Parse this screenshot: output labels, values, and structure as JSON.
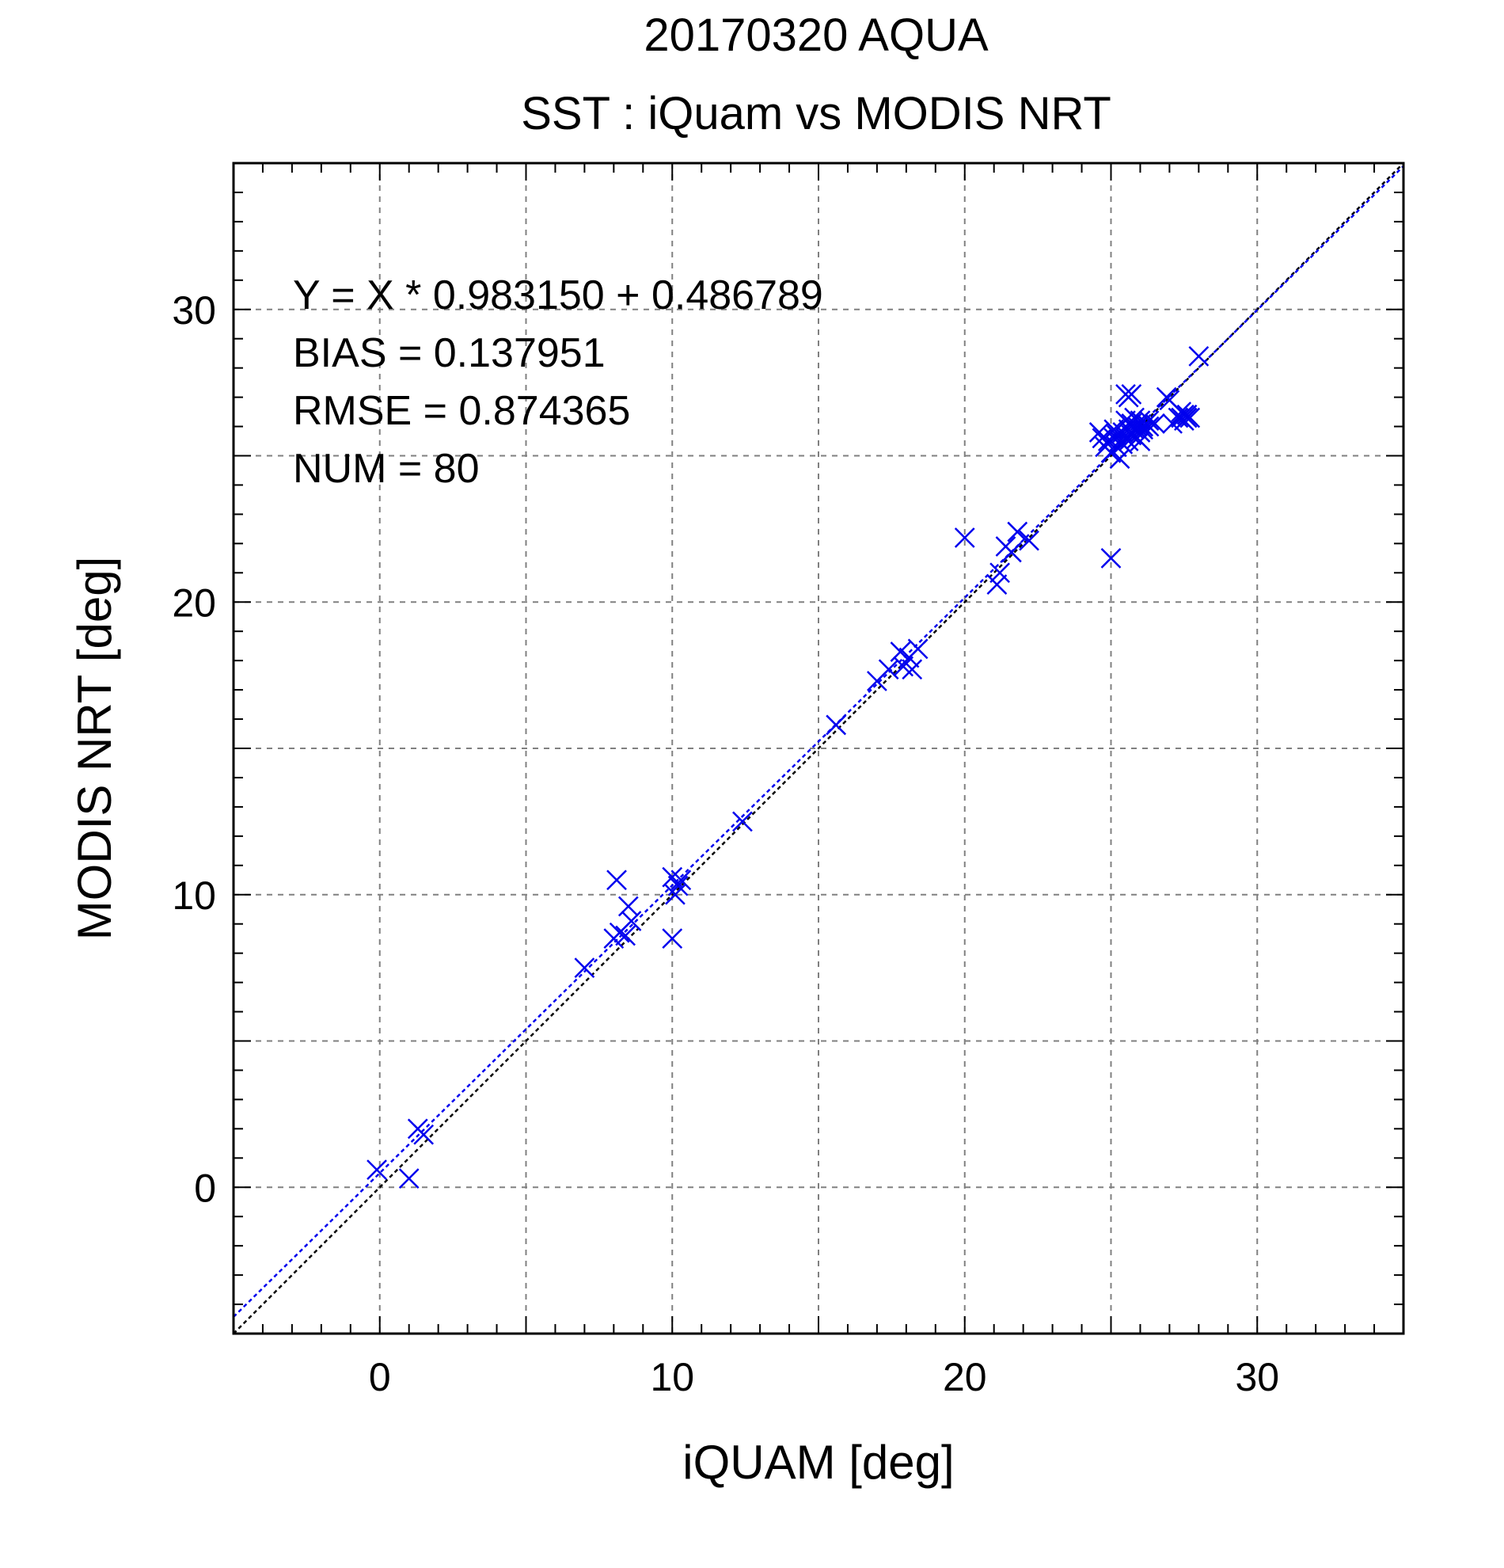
{
  "chart_data": {
    "type": "scatter",
    "title": "20170320 AQUA",
    "subtitle": "SST : iQuam vs MODIS NRT",
    "xlabel": "iQUAM [deg]",
    "ylabel": "MODIS NRT [deg]",
    "xlim": [
      -5,
      35
    ],
    "ylim": [
      -5,
      35
    ],
    "xticks": [
      0,
      10,
      20,
      30
    ],
    "yticks": [
      0,
      10,
      20,
      30
    ],
    "grid": true,
    "grid_step": 5,
    "minor_tick_step": 1,
    "marker": "x",
    "marker_color": "#0000ee",
    "stats": [
      "Y = X * 0.983150 + 0.486789",
      "BIAS = 0.137951",
      "RMSE = 0.874365",
      "NUM = 80"
    ],
    "lines": [
      {
        "kind": "one-to-one",
        "slope": 1,
        "intercept": 0,
        "color": "#000000",
        "style": "dotted"
      },
      {
        "kind": "regression",
        "slope": 0.98315,
        "intercept": 0.486789,
        "color": "#0000ee",
        "style": "dotted"
      }
    ],
    "series": [
      {
        "points": [
          [
            -0.1,
            0.6
          ],
          [
            1.0,
            0.3
          ],
          [
            1.3,
            2.0
          ],
          [
            1.5,
            1.8
          ],
          [
            7.0,
            7.5
          ],
          [
            8.0,
            8.5
          ],
          [
            8.1,
            10.5
          ],
          [
            8.2,
            8.7
          ],
          [
            8.4,
            8.6
          ],
          [
            8.5,
            9.6
          ],
          [
            8.6,
            9.1
          ],
          [
            10.0,
            8.5
          ],
          [
            10.0,
            10.6
          ],
          [
            10.1,
            10.0
          ],
          [
            10.2,
            10.3
          ],
          [
            10.3,
            10.5
          ],
          [
            12.4,
            12.5
          ],
          [
            15.6,
            15.8
          ],
          [
            17.0,
            17.3
          ],
          [
            17.4,
            17.7
          ],
          [
            17.8,
            18.3
          ],
          [
            17.9,
            17.8
          ],
          [
            18.1,
            18.1
          ],
          [
            18.2,
            17.7
          ],
          [
            18.4,
            18.4
          ],
          [
            20.0,
            22.2
          ],
          [
            21.1,
            20.6
          ],
          [
            21.2,
            21.0
          ],
          [
            21.4,
            21.9
          ],
          [
            21.6,
            21.7
          ],
          [
            21.8,
            22.4
          ],
          [
            22.2,
            22.1
          ],
          [
            24.6,
            25.8
          ],
          [
            24.7,
            25.6
          ],
          [
            24.8,
            25.3
          ],
          [
            24.9,
            25.5
          ],
          [
            25.0,
            21.5
          ],
          [
            25.0,
            25.1
          ],
          [
            25.1,
            25.9
          ],
          [
            25.1,
            25.6
          ],
          [
            25.2,
            25.3
          ],
          [
            25.2,
            25.7
          ],
          [
            25.3,
            24.9
          ],
          [
            25.3,
            25.5
          ],
          [
            25.4,
            25.8
          ],
          [
            25.4,
            25.4
          ],
          [
            25.5,
            26.2
          ],
          [
            25.5,
            25.6
          ],
          [
            25.5,
            27.1
          ],
          [
            25.6,
            25.9
          ],
          [
            25.6,
            25.5
          ],
          [
            25.6,
            27.0
          ],
          [
            25.7,
            26.1
          ],
          [
            25.7,
            25.7
          ],
          [
            25.7,
            27.1
          ],
          [
            25.8,
            25.9
          ],
          [
            25.8,
            26.3
          ],
          [
            25.9,
            25.6
          ],
          [
            25.9,
            26.0
          ],
          [
            26.0,
            26.2
          ],
          [
            26.0,
            25.8
          ],
          [
            26.0,
            25.5
          ],
          [
            26.1,
            26.0
          ],
          [
            26.1,
            25.9
          ],
          [
            26.2,
            26.1
          ],
          [
            26.3,
            26.0
          ],
          [
            26.3,
            26.2
          ],
          [
            26.5,
            26.1
          ],
          [
            26.9,
            27.0
          ],
          [
            27.0,
            26.9
          ],
          [
            27.1,
            26.1
          ],
          [
            27.3,
            26.3
          ],
          [
            27.4,
            26.3
          ],
          [
            27.4,
            26.5
          ],
          [
            27.5,
            26.4
          ],
          [
            27.5,
            26.2
          ],
          [
            27.6,
            26.4
          ],
          [
            27.6,
            26.3
          ],
          [
            27.7,
            26.3
          ],
          [
            28.0,
            28.4
          ]
        ]
      }
    ]
  }
}
